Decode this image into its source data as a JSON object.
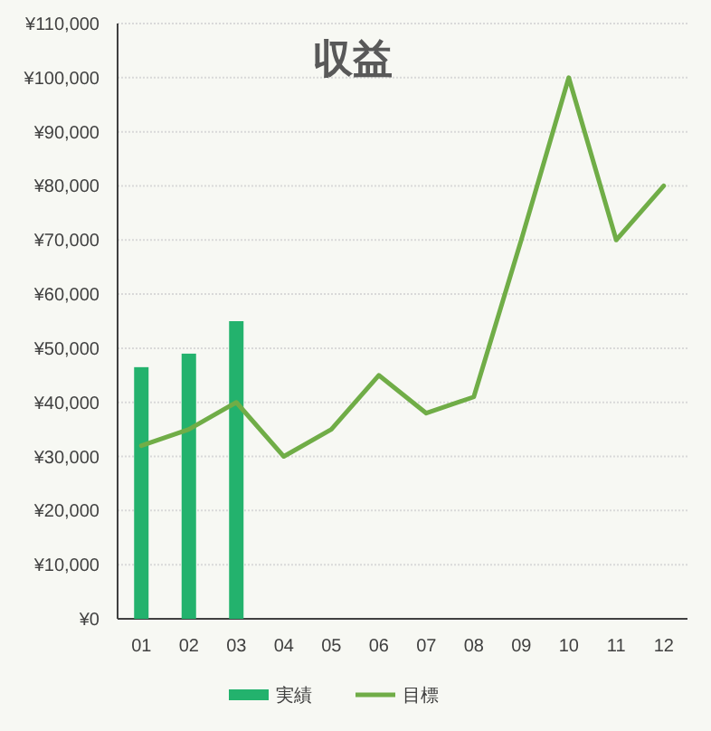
{
  "chart_data": {
    "type": "bar",
    "title": "収益",
    "categories": [
      "01",
      "02",
      "03",
      "04",
      "05",
      "06",
      "07",
      "08",
      "09",
      "10",
      "11",
      "12"
    ],
    "series": [
      {
        "name": "実績",
        "color": "#23b26d",
        "values": [
          46500,
          49000,
          55000,
          null,
          null,
          null,
          null,
          null,
          null,
          null,
          null,
          null
        ]
      },
      {
        "name": "目標",
        "type": "line",
        "color": "#70ad47",
        "values": [
          32000,
          35000,
          40000,
          30000,
          35000,
          45000,
          38000,
          41000,
          70000,
          100000,
          70000,
          80000
        ]
      }
    ],
    "ylim": [
      0,
      110000
    ],
    "yticks": [
      {
        "value": 0,
        "label": "¥0"
      },
      {
        "value": 10000,
        "label": "¥10,000"
      },
      {
        "value": 20000,
        "label": "¥20,000"
      },
      {
        "value": 30000,
        "label": "¥30,000"
      },
      {
        "value": 40000,
        "label": "¥40,000"
      },
      {
        "value": 50000,
        "label": "¥50,000"
      },
      {
        "value": 60000,
        "label": "¥60,000"
      },
      {
        "value": 70000,
        "label": "¥70,000"
      },
      {
        "value": 80000,
        "label": "¥80,000"
      },
      {
        "value": 90000,
        "label": "¥90,000"
      },
      {
        "value": 100000,
        "label": "¥100,000"
      },
      {
        "value": 110000,
        "label": "¥110,000"
      }
    ],
    "grid": "y",
    "legend": "bottom"
  }
}
